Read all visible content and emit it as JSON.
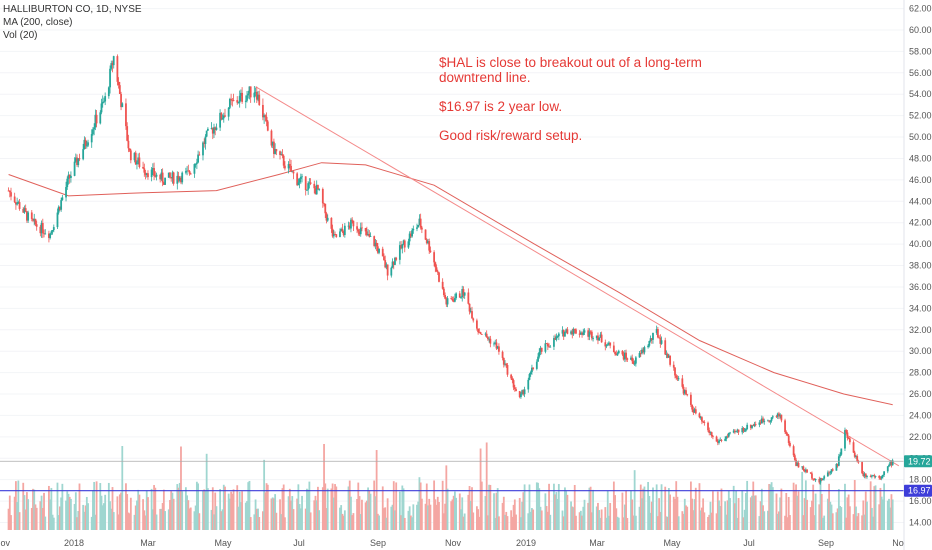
{
  "legend": {
    "symbol": "HALLIBURTON CO, 1D, NYSE",
    "ma": "MA (200, close)",
    "vol": "Vol (20)"
  },
  "annotation": {
    "line1": "$HAL is close to breakout out of a long-term downtrend line.",
    "line2": "$16.97 is 2 year low.",
    "line3": "Good risk/reward setup."
  },
  "colors": {
    "up": "#26a69a",
    "down": "#ef5350",
    "ma": "#e0605a",
    "trend": "#f48a8a",
    "support": "#3d3dd9",
    "vol_up": "#9fd6d0",
    "vol_down": "#f4a6a2",
    "annotation": "#e53935"
  },
  "chart_data": {
    "type": "candlestick",
    "symbol": "HALLIBURTON CO",
    "interval": "1D",
    "exchange": "NYSE",
    "x_ticks": [
      "Nov",
      "2018",
      "Mar",
      "May",
      "Jul",
      "Sep",
      "Nov",
      "2019",
      "Mar",
      "May",
      "Jul",
      "Sep",
      "No"
    ],
    "y_ticks": [
      "14.00",
      "16.00",
      "18.00",
      "20.00",
      "22.00",
      "24.00",
      "26.00",
      "28.00",
      "30.00",
      "32.00",
      "34.00",
      "36.00",
      "38.00",
      "40.00",
      "42.00",
      "44.00",
      "46.00",
      "48.00",
      "50.00",
      "52.00",
      "54.00",
      "56.00",
      "58.00",
      "60.00",
      "62.00"
    ],
    "ylim": [
      13.3,
      62.8
    ],
    "last_price": "19.72",
    "support_label": "16.97",
    "support_level": 16.97,
    "price_path_approx": [
      [
        "2017-11-01",
        45.0
      ],
      [
        "2017-11-20",
        42.0
      ],
      [
        "2017-12-05",
        41.0
      ],
      [
        "2017-12-20",
        46.0
      ],
      [
        "2018-01-05",
        50.0
      ],
      [
        "2018-01-19",
        53.5
      ],
      [
        "2018-01-26",
        57.5
      ],
      [
        "2018-02-08",
        48.5
      ],
      [
        "2018-02-20",
        47.0
      ],
      [
        "2018-03-08",
        46.0
      ],
      [
        "2018-03-28",
        46.5
      ],
      [
        "2018-04-12",
        50.0
      ],
      [
        "2018-05-01",
        53.0
      ],
      [
        "2018-05-22",
        54.5
      ],
      [
        "2018-06-05",
        49.0
      ],
      [
        "2018-06-25",
        46.0
      ],
      [
        "2018-07-12",
        45.0
      ],
      [
        "2018-07-25",
        40.5
      ],
      [
        "2018-08-10",
        42.0
      ],
      [
        "2018-08-28",
        40.0
      ],
      [
        "2018-09-07",
        37.5
      ],
      [
        "2018-09-20",
        40.0
      ],
      [
        "2018-10-03",
        42.0
      ],
      [
        "2018-10-12",
        39.5
      ],
      [
        "2018-10-25",
        34.5
      ],
      [
        "2018-11-08",
        35.5
      ],
      [
        "2018-11-20",
        32.0
      ],
      [
        "2018-12-05",
        30.5
      ],
      [
        "2018-12-24",
        25.5
      ],
      [
        "2019-01-10",
        30.0
      ],
      [
        "2019-02-01",
        32.0
      ],
      [
        "2019-02-25",
        31.5
      ],
      [
        "2019-03-12",
        30.0
      ],
      [
        "2019-03-28",
        29.0
      ],
      [
        "2019-04-15",
        31.8
      ],
      [
        "2019-04-30",
        28.0
      ],
      [
        "2019-05-15",
        24.5
      ],
      [
        "2019-06-03",
        21.5
      ],
      [
        "2019-06-20",
        22.5
      ],
      [
        "2019-07-10",
        23.5
      ],
      [
        "2019-07-25",
        24.0
      ],
      [
        "2019-08-07",
        19.5
      ],
      [
        "2019-08-26",
        17.8
      ],
      [
        "2019-09-10",
        19.5
      ],
      [
        "2019-09-16",
        22.5
      ],
      [
        "2019-10-01",
        18.5
      ],
      [
        "2019-10-15",
        18.3
      ],
      [
        "2019-10-25",
        19.72
      ]
    ],
    "ma200_approx": [
      [
        "2017-11-01",
        46.5
      ],
      [
        "2017-12-20",
        44.5
      ],
      [
        "2018-02-20",
        44.8
      ],
      [
        "2018-04-20",
        45.0
      ],
      [
        "2018-06-10",
        46.5
      ],
      [
        "2018-07-15",
        47.6
      ],
      [
        "2018-08-20",
        47.4
      ],
      [
        "2018-10-15",
        45.5
      ],
      [
        "2019-01-05",
        40.0
      ],
      [
        "2019-03-15",
        35.5
      ],
      [
        "2019-05-20",
        31.0
      ],
      [
        "2019-07-20",
        28.0
      ],
      [
        "2019-09-15",
        26.0
      ],
      [
        "2019-10-25",
        25.0
      ]
    ],
    "trendline": [
      [
        "2018-05-22",
        54.7
      ],
      [
        "2019-10-30",
        19.3
      ]
    ],
    "volume_axis": "unlabeled"
  }
}
